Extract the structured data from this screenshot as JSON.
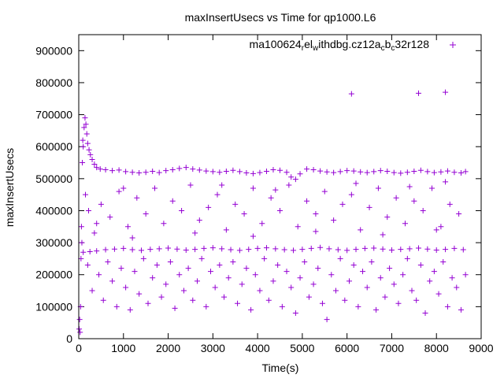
{
  "chart_data": {
    "type": "scatter",
    "title": "maxInsertUsecs vs Time for qp1000.L6",
    "xlabel": "Time(s)",
    "ylabel": "maxInsertUsecs",
    "xlim": [
      0,
      9000
    ],
    "ylim": [
      0,
      950000
    ],
    "xticks": [
      0,
      1000,
      2000,
      3000,
      4000,
      5000,
      6000,
      7000,
      8000,
      9000
    ],
    "yticks": [
      0,
      100000,
      200000,
      300000,
      400000,
      500000,
      600000,
      700000,
      800000,
      900000
    ],
    "grid": false,
    "legend_position": "top-right",
    "series": [
      {
        "legend": {
          "text_parts": [
            "ma100624",
            "r",
            "el",
            "w",
            "ithdbg.cz12a",
            "c",
            "b",
            "c",
            "32r128"
          ],
          "subscript_parts": [
            1,
            3,
            5,
            7
          ]
        },
        "marker": "+",
        "color": "#9400d3",
        "points": [
          [
            10,
            30000
          ],
          [
            20,
            60000
          ],
          [
            30,
            20000
          ],
          [
            40,
            100000
          ],
          [
            50,
            250000
          ],
          [
            60,
            350000
          ],
          [
            70,
            300000
          ],
          [
            80,
            550000
          ],
          [
            90,
            620000
          ],
          [
            100,
            600000
          ],
          [
            120,
            660000
          ],
          [
            140,
            690000
          ],
          [
            160,
            670000
          ],
          [
            180,
            640000
          ],
          [
            200,
            610000
          ],
          [
            230,
            590000
          ],
          [
            260,
            575000
          ],
          [
            300,
            560000
          ],
          [
            350,
            545000
          ],
          [
            400,
            535000
          ],
          [
            480,
            530000
          ],
          [
            600,
            528000
          ],
          [
            750,
            525000
          ],
          [
            900,
            527000
          ],
          [
            1050,
            522000
          ],
          [
            1200,
            520000
          ],
          [
            1350,
            518000
          ],
          [
            1500,
            520000
          ],
          [
            1650,
            523000
          ],
          [
            1800,
            519000
          ],
          [
            1950,
            525000
          ],
          [
            2100,
            528000
          ],
          [
            2250,
            532000
          ],
          [
            2400,
            535000
          ],
          [
            2550,
            530000
          ],
          [
            2700,
            527000
          ],
          [
            2850,
            524000
          ],
          [
            3000,
            522000
          ],
          [
            3150,
            520000
          ],
          [
            3300,
            523000
          ],
          [
            3450,
            526000
          ],
          [
            3600,
            522000
          ],
          [
            3750,
            518000
          ],
          [
            3900,
            516000
          ],
          [
            4050,
            519000
          ],
          [
            4200,
            523000
          ],
          [
            4350,
            528000
          ],
          [
            4500,
            526000
          ],
          [
            4650,
            520000
          ],
          [
            4750,
            505000
          ],
          [
            4850,
            498000
          ],
          [
            4950,
            515000
          ],
          [
            5100,
            530000
          ],
          [
            5250,
            528000
          ],
          [
            5400,
            524000
          ],
          [
            5550,
            521000
          ],
          [
            5700,
            519000
          ],
          [
            5850,
            522000
          ],
          [
            6000,
            525000
          ],
          [
            6150,
            524000
          ],
          [
            6300,
            521000
          ],
          [
            6450,
            519000
          ],
          [
            6600,
            522000
          ],
          [
            6750,
            525000
          ],
          [
            6900,
            523000
          ],
          [
            7050,
            519000
          ],
          [
            7200,
            517000
          ],
          [
            7350,
            520000
          ],
          [
            7500,
            523000
          ],
          [
            7650,
            526000
          ],
          [
            7800,
            522000
          ],
          [
            7950,
            519000
          ],
          [
            8100,
            521000
          ],
          [
            8250,
            524000
          ],
          [
            8400,
            520000
          ],
          [
            8550,
            518000
          ],
          [
            8650,
            522000
          ],
          [
            100,
            270000
          ],
          [
            250,
            272000
          ],
          [
            400,
            274000
          ],
          [
            600,
            278000
          ],
          [
            800,
            280000
          ],
          [
            1000,
            282000
          ],
          [
            1200,
            278000
          ],
          [
            1400,
            276000
          ],
          [
            1600,
            279000
          ],
          [
            1800,
            281000
          ],
          [
            2000,
            283000
          ],
          [
            2200,
            280000
          ],
          [
            2400,
            277000
          ],
          [
            2600,
            279000
          ],
          [
            2800,
            282000
          ],
          [
            3000,
            284000
          ],
          [
            3200,
            281000
          ],
          [
            3400,
            278000
          ],
          [
            3600,
            276000
          ],
          [
            3800,
            279000
          ],
          [
            4000,
            282000
          ],
          [
            4200,
            284000
          ],
          [
            4400,
            281000
          ],
          [
            4600,
            278000
          ],
          [
            4800,
            276000
          ],
          [
            5000,
            279000
          ],
          [
            5200,
            282000
          ],
          [
            5400,
            285000
          ],
          [
            5600,
            281000
          ],
          [
            5800,
            278000
          ],
          [
            6000,
            276000
          ],
          [
            6200,
            279000
          ],
          [
            6400,
            282000
          ],
          [
            6600,
            283000
          ],
          [
            6800,
            280000
          ],
          [
            7000,
            277000
          ],
          [
            7200,
            279000
          ],
          [
            7400,
            281000
          ],
          [
            7600,
            283000
          ],
          [
            7800,
            280000
          ],
          [
            8000,
            277000
          ],
          [
            8200,
            279000
          ],
          [
            8400,
            282000
          ],
          [
            8600,
            278000
          ],
          [
            150,
            450000
          ],
          [
            220,
            400000
          ],
          [
            350,
            330000
          ],
          [
            500,
            420000
          ],
          [
            700,
            380000
          ],
          [
            900,
            460000
          ],
          [
            1100,
            350000
          ],
          [
            1300,
            440000
          ],
          [
            1500,
            390000
          ],
          [
            1700,
            470000
          ],
          [
            1900,
            360000
          ],
          [
            2100,
            430000
          ],
          [
            2300,
            400000
          ],
          [
            2500,
            480000
          ],
          [
            2700,
            370000
          ],
          [
            2900,
            410000
          ],
          [
            3100,
            450000
          ],
          [
            3300,
            340000
          ],
          [
            3500,
            420000
          ],
          [
            3700,
            390000
          ],
          [
            3900,
            470000
          ],
          [
            4100,
            360000
          ],
          [
            4300,
            440000
          ],
          [
            4500,
            400000
          ],
          [
            4700,
            480000
          ],
          [
            4900,
            350000
          ],
          [
            5100,
            430000
          ],
          [
            5300,
            390000
          ],
          [
            5500,
            460000
          ],
          [
            5700,
            370000
          ],
          [
            5900,
            420000
          ],
          [
            6100,
            450000
          ],
          [
            6300,
            340000
          ],
          [
            6500,
            410000
          ],
          [
            6700,
            470000
          ],
          [
            6900,
            380000
          ],
          [
            7100,
            440000
          ],
          [
            7300,
            360000
          ],
          [
            7500,
            430000
          ],
          [
            7700,
            400000
          ],
          [
            7900,
            470000
          ],
          [
            8100,
            350000
          ],
          [
            8300,
            420000
          ],
          [
            8500,
            390000
          ],
          [
            200,
            230000
          ],
          [
            300,
            150000
          ],
          [
            450,
            200000
          ],
          [
            550,
            120000
          ],
          [
            650,
            240000
          ],
          [
            750,
            180000
          ],
          [
            850,
            100000
          ],
          [
            950,
            220000
          ],
          [
            1050,
            160000
          ],
          [
            1150,
            90000
          ],
          [
            1250,
            210000
          ],
          [
            1350,
            140000
          ],
          [
            1450,
            250000
          ],
          [
            1550,
            110000
          ],
          [
            1650,
            190000
          ],
          [
            1750,
            230000
          ],
          [
            1850,
            130000
          ],
          [
            1950,
            170000
          ],
          [
            2050,
            240000
          ],
          [
            2150,
            95000
          ],
          [
            2250,
            200000
          ],
          [
            2350,
            150000
          ],
          [
            2450,
            220000
          ],
          [
            2550,
            120000
          ],
          [
            2650,
            180000
          ],
          [
            2750,
            250000
          ],
          [
            2850,
            100000
          ],
          [
            2950,
            210000
          ],
          [
            3050,
            160000
          ],
          [
            3150,
            230000
          ],
          [
            3250,
            130000
          ],
          [
            3350,
            190000
          ],
          [
            3450,
            240000
          ],
          [
            3550,
            110000
          ],
          [
            3650,
            170000
          ],
          [
            3750,
            220000
          ],
          [
            3850,
            90000
          ],
          [
            3950,
            200000
          ],
          [
            4050,
            150000
          ],
          [
            4150,
            250000
          ],
          [
            4250,
            120000
          ],
          [
            4350,
            180000
          ],
          [
            4450,
            230000
          ],
          [
            4550,
            100000
          ],
          [
            4650,
            210000
          ],
          [
            4750,
            160000
          ],
          [
            4850,
            80000
          ],
          [
            4950,
            190000
          ],
          [
            5050,
            240000
          ],
          [
            5150,
            130000
          ],
          [
            5250,
            170000
          ],
          [
            5350,
            220000
          ],
          [
            5450,
            110000
          ],
          [
            5550,
            60000
          ],
          [
            5650,
            200000
          ],
          [
            5750,
            150000
          ],
          [
            5850,
            250000
          ],
          [
            5950,
            120000
          ],
          [
            6050,
            180000
          ],
          [
            6150,
            230000
          ],
          [
            6250,
            100000
          ],
          [
            6350,
            210000
          ],
          [
            6450,
            160000
          ],
          [
            6550,
            240000
          ],
          [
            6650,
            90000
          ],
          [
            6750,
            190000
          ],
          [
            6850,
            130000
          ],
          [
            6950,
            220000
          ],
          [
            7050,
            170000
          ],
          [
            7150,
            110000
          ],
          [
            7250,
            200000
          ],
          [
            7350,
            250000
          ],
          [
            7450,
            150000
          ],
          [
            7550,
            120000
          ],
          [
            7650,
            230000
          ],
          [
            7750,
            80000
          ],
          [
            7850,
            180000
          ],
          [
            7950,
            210000
          ],
          [
            8050,
            140000
          ],
          [
            8150,
            240000
          ],
          [
            8250,
            100000
          ],
          [
            8350,
            190000
          ],
          [
            8450,
            160000
          ],
          [
            8550,
            90000
          ],
          [
            8650,
            200000
          ],
          [
            400,
            360000
          ],
          [
            1200,
            315000
          ],
          [
            2600,
            330000
          ],
          [
            3900,
            320000
          ],
          [
            5300,
            335000
          ],
          [
            6800,
            325000
          ],
          [
            8000,
            340000
          ],
          [
            1000,
            470000
          ],
          [
            3200,
            480000
          ],
          [
            4400,
            465000
          ],
          [
            6200,
            485000
          ],
          [
            7400,
            475000
          ],
          [
            8200,
            490000
          ],
          [
            6100,
            765000
          ],
          [
            7600,
            767000
          ],
          [
            8200,
            770000
          ]
        ]
      }
    ]
  }
}
